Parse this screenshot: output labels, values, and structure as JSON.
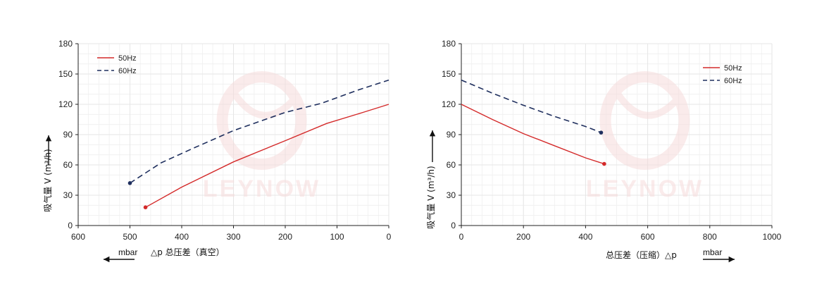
{
  "colors": {
    "series_50hz": "#d42a2a",
    "series_60hz": "#1f2f5e",
    "grid": "#e6e6e6",
    "axis": "#222222",
    "watermark": "#f6dcdc"
  },
  "watermark": {
    "text": "LEYNOW"
  },
  "chart_data": [
    {
      "type": "line",
      "title": "",
      "xlabel": "△p 总压差（真空）",
      "xunit": "mbar",
      "ylabel": "吸气量 V (m³/h)",
      "xlim": [
        600,
        0
      ],
      "ylim": [
        0,
        180
      ],
      "x_reversed": true,
      "xticks": [
        600,
        500,
        400,
        300,
        200,
        100,
        0
      ],
      "yticks": [
        0,
        30,
        60,
        90,
        120,
        150,
        180
      ],
      "grid": true,
      "legend_position": "top-left",
      "series": [
        {
          "name": "50Hz",
          "style": "solid",
          "x": [
            470,
            400,
            300,
            200,
            120,
            50,
            0
          ],
          "y": [
            18,
            38,
            63,
            84,
            101,
            112,
            120
          ]
        },
        {
          "name": "60Hz",
          "style": "dashed",
          "x": [
            500,
            440,
            380,
            300,
            200,
            130,
            60,
            0
          ],
          "y": [
            42,
            62,
            76,
            94,
            112,
            121,
            134,
            144
          ]
        }
      ]
    },
    {
      "type": "line",
      "title": "",
      "xlabel": "总压差（压缩）△p",
      "xunit": "mbar",
      "ylabel": "吸气量 V (m³/h)",
      "xlim": [
        0,
        1000
      ],
      "ylim": [
        0,
        180
      ],
      "x_reversed": false,
      "xticks": [
        0,
        200,
        400,
        600,
        800,
        1000
      ],
      "yticks": [
        0,
        30,
        60,
        90,
        120,
        150,
        180
      ],
      "grid": true,
      "legend_position": "top-right",
      "series": [
        {
          "name": "50Hz",
          "style": "solid",
          "x": [
            0,
            100,
            200,
            300,
            400,
            460
          ],
          "y": [
            120,
            105,
            91,
            79,
            67,
            61
          ]
        },
        {
          "name": "60Hz",
          "style": "dashed",
          "x": [
            0,
            100,
            200,
            300,
            400,
            450
          ],
          "y": [
            144,
            131,
            119,
            108,
            98,
            92
          ]
        }
      ]
    }
  ]
}
